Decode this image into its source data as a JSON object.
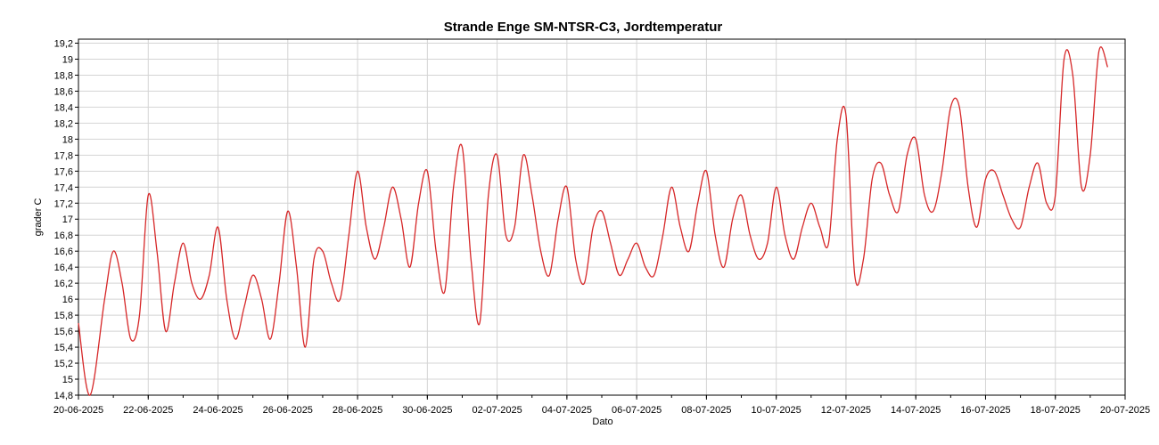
{
  "chart_data": {
    "type": "line",
    "title": "Strande Enge SM-NTSR-C3, Jordtemperatur",
    "xlabel": "Dato",
    "ylabel": "grader C",
    "ylim": [
      14.8,
      19.25
    ],
    "yticks": [
      14.8,
      15,
      15.2,
      15.4,
      15.6,
      15.8,
      16,
      16.2,
      16.4,
      16.6,
      16.8,
      17,
      17.2,
      17.4,
      17.6,
      17.8,
      18,
      18.2,
      18.4,
      18.6,
      18.8,
      19,
      19.2
    ],
    "xlim": [
      "20-06-2025",
      "20-07-2025"
    ],
    "xticks": [
      "20-06-2025",
      "22-06-2025",
      "24-06-2025",
      "26-06-2025",
      "28-06-2025",
      "30-06-2025",
      "02-07-2025",
      "04-07-2025",
      "06-07-2025",
      "08-07-2025",
      "10-07-2025",
      "12-07-2025",
      "14-07-2025",
      "16-07-2025",
      "18-07-2025",
      "20-07-2025"
    ],
    "grid": true,
    "line_color": "#d62728",
    "series": [
      {
        "x": [
          "20-06-2025 00:00",
          "20-06-2025 08:00",
          "20-06-2025 18:00",
          "21-06-2025 00:00",
          "21-06-2025 06:00",
          "21-06-2025 12:00",
          "21-06-2025 18:00",
          "22-06-2025 00:00",
          "22-06-2025 06:00",
          "22-06-2025 12:00",
          "22-06-2025 18:00",
          "23-06-2025 00:00",
          "23-06-2025 06:00",
          "23-06-2025 12:00",
          "23-06-2025 18:00",
          "24-06-2025 00:00",
          "24-06-2025 06:00",
          "24-06-2025 12:00",
          "24-06-2025 18:00",
          "25-06-2025 00:00",
          "25-06-2025 06:00",
          "25-06-2025 12:00",
          "25-06-2025 18:00",
          "26-06-2025 00:00",
          "26-06-2025 06:00",
          "26-06-2025 12:00",
          "26-06-2025 18:00",
          "27-06-2025 00:00",
          "27-06-2025 06:00",
          "27-06-2025 12:00",
          "27-06-2025 18:00",
          "28-06-2025 00:00",
          "28-06-2025 06:00",
          "28-06-2025 12:00",
          "28-06-2025 18:00",
          "29-06-2025 00:00",
          "29-06-2025 06:00",
          "29-06-2025 12:00",
          "29-06-2025 18:00",
          "30-06-2025 00:00",
          "30-06-2025 06:00",
          "30-06-2025 12:00",
          "30-06-2025 18:00",
          "01-07-2025 00:00",
          "01-07-2025 06:00",
          "01-07-2025 12:00",
          "01-07-2025 18:00",
          "02-07-2025 00:00",
          "02-07-2025 06:00",
          "02-07-2025 12:00",
          "02-07-2025 18:00",
          "03-07-2025 00:00",
          "03-07-2025 06:00",
          "03-07-2025 12:00",
          "03-07-2025 18:00",
          "04-07-2025 00:00",
          "04-07-2025 06:00",
          "04-07-2025 12:00",
          "04-07-2025 18:00",
          "05-07-2025 00:00",
          "05-07-2025 06:00",
          "05-07-2025 12:00",
          "05-07-2025 18:00",
          "06-07-2025 00:00",
          "06-07-2025 06:00",
          "06-07-2025 12:00",
          "06-07-2025 18:00",
          "07-07-2025 00:00",
          "07-07-2025 06:00",
          "07-07-2025 12:00",
          "07-07-2025 18:00",
          "08-07-2025 00:00",
          "08-07-2025 06:00",
          "08-07-2025 12:00",
          "08-07-2025 18:00",
          "09-07-2025 00:00",
          "09-07-2025 06:00",
          "09-07-2025 12:00",
          "09-07-2025 18:00",
          "10-07-2025 00:00",
          "10-07-2025 06:00",
          "10-07-2025 12:00",
          "10-07-2025 18:00",
          "11-07-2025 00:00",
          "11-07-2025 06:00",
          "11-07-2025 12:00",
          "11-07-2025 18:00",
          "12-07-2025 00:00",
          "12-07-2025 06:00",
          "12-07-2025 12:00",
          "12-07-2025 18:00",
          "13-07-2025 00:00",
          "13-07-2025 06:00",
          "13-07-2025 12:00",
          "13-07-2025 18:00",
          "14-07-2025 00:00",
          "14-07-2025 06:00",
          "14-07-2025 12:00",
          "14-07-2025 18:00",
          "15-07-2025 00:00",
          "15-07-2025 06:00",
          "15-07-2025 12:00",
          "15-07-2025 18:00",
          "16-07-2025 00:00",
          "16-07-2025 06:00",
          "16-07-2025 12:00",
          "16-07-2025 18:00",
          "17-07-2025 00:00",
          "17-07-2025 06:00",
          "17-07-2025 12:00",
          "17-07-2025 18:00",
          "18-07-2025 00:00",
          "18-07-2025 06:00",
          "18-07-2025 12:00",
          "18-07-2025 18:00",
          "19-07-2025 00:00",
          "19-07-2025 06:00",
          "19-07-2025 12:00"
        ],
        "values": [
          15.7,
          14.8,
          16.0,
          16.6,
          16.2,
          15.5,
          15.8,
          17.3,
          16.6,
          15.6,
          16.2,
          16.7,
          16.2,
          16.0,
          16.3,
          16.9,
          16.0,
          15.5,
          15.9,
          16.3,
          16.0,
          15.5,
          16.2,
          17.1,
          16.4,
          15.4,
          16.5,
          16.6,
          16.2,
          16.0,
          16.8,
          17.6,
          16.9,
          16.5,
          16.9,
          17.4,
          17.0,
          16.4,
          17.2,
          17.6,
          16.6,
          16.1,
          17.4,
          17.9,
          16.5,
          15.7,
          17.3,
          17.8,
          16.8,
          16.9,
          17.8,
          17.3,
          16.6,
          16.3,
          17.0,
          17.4,
          16.5,
          16.2,
          16.9,
          17.1,
          16.7,
          16.3,
          16.5,
          16.7,
          16.4,
          16.3,
          16.8,
          17.4,
          16.9,
          16.6,
          17.2,
          17.6,
          16.8,
          16.4,
          17.0,
          17.3,
          16.8,
          16.5,
          16.7,
          17.4,
          16.8,
          16.5,
          16.9,
          17.2,
          16.9,
          16.7,
          18.0,
          18.3,
          16.3,
          16.5,
          17.5,
          17.7,
          17.3,
          17.1,
          17.8,
          18.0,
          17.3,
          17.1,
          17.6,
          18.4,
          18.4,
          17.4,
          16.9,
          17.5,
          17.6,
          17.3,
          17.0,
          16.9,
          17.4,
          17.7,
          17.2,
          17.3,
          19.0,
          18.8,
          17.4,
          17.8,
          19.1,
          18.9
        ]
      }
    ]
  }
}
